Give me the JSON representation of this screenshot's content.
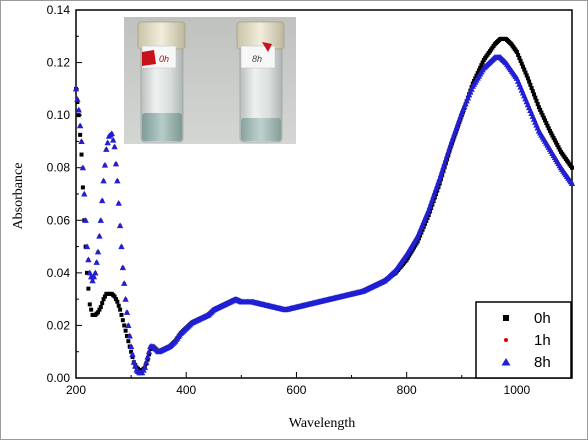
{
  "chart_data": {
    "type": "scatter",
    "title": "",
    "xlabel": "Wavelength",
    "ylabel": "Absorbance",
    "xlim": [
      200,
      1100
    ],
    "ylim": [
      0.0,
      0.14
    ],
    "x_ticks": [
      "200",
      "400",
      "600",
      "800",
      "1000"
    ],
    "y_ticks": [
      "0.00",
      "0.02",
      "0.04",
      "0.06",
      "0.08",
      "0.10",
      "0.12",
      "0.14"
    ],
    "grid": false,
    "legend_position": "bottom-right",
    "series": [
      {
        "name": "0h",
        "marker": "square",
        "color": "#000000",
        "x": [
          200,
          205,
          210,
          215,
          220,
          225,
          230,
          235,
          240,
          245,
          250,
          255,
          260,
          265,
          270,
          275,
          280,
          285,
          290,
          295,
          300,
          305,
          310,
          315,
          320,
          325,
          330,
          335,
          340,
          350,
          360,
          370,
          380,
          390,
          400,
          410,
          420,
          430,
          440,
          450,
          460,
          470,
          480,
          490,
          500,
          520,
          540,
          560,
          580,
          600,
          620,
          640,
          660,
          680,
          700,
          720,
          740,
          760,
          780,
          800,
          820,
          840,
          860,
          880,
          900,
          920,
          940,
          960,
          970,
          980,
          990,
          1000,
          1020,
          1040,
          1060,
          1080,
          1100
        ],
        "y": [
          0.11,
          0.1,
          0.085,
          0.06,
          0.04,
          0.028,
          0.024,
          0.024,
          0.025,
          0.027,
          0.03,
          0.032,
          0.032,
          0.032,
          0.031,
          0.029,
          0.026,
          0.022,
          0.018,
          0.014,
          0.01,
          0.006,
          0.004,
          0.003,
          0.003,
          0.004,
          0.007,
          0.011,
          0.012,
          0.01,
          0.011,
          0.012,
          0.014,
          0.017,
          0.019,
          0.021,
          0.022,
          0.023,
          0.024,
          0.026,
          0.027,
          0.028,
          0.029,
          0.03,
          0.029,
          0.029,
          0.028,
          0.027,
          0.026,
          0.027,
          0.028,
          0.029,
          0.03,
          0.031,
          0.032,
          0.033,
          0.035,
          0.037,
          0.04,
          0.045,
          0.052,
          0.062,
          0.074,
          0.088,
          0.1,
          0.112,
          0.121,
          0.127,
          0.129,
          0.129,
          0.127,
          0.124,
          0.114,
          0.103,
          0.094,
          0.086,
          0.08
        ]
      },
      {
        "name": "1h",
        "marker": "circle",
        "color": "#e00000",
        "x": [
          200,
          205,
          210,
          215,
          220,
          225,
          230,
          235,
          240,
          245,
          250,
          255,
          260,
          265,
          270,
          275,
          280,
          285,
          290,
          295,
          300,
          305,
          310,
          315,
          320,
          325,
          330,
          335,
          340,
          350,
          360,
          370,
          380,
          390,
          400,
          410,
          420,
          430,
          440,
          450,
          460,
          470,
          480,
          490,
          500,
          520,
          540,
          560,
          580,
          600,
          620,
          640,
          660,
          680,
          700,
          720,
          740,
          760,
          780,
          800,
          820,
          840,
          860,
          880,
          900,
          920,
          940,
          950,
          960,
          970,
          980,
          1000,
          1020,
          1040,
          1060,
          1080,
          1100
        ],
        "y": [
          0.11,
          0.102,
          0.09,
          0.07,
          0.05,
          0.04,
          0.037,
          0.04,
          0.048,
          0.06,
          0.075,
          0.087,
          0.092,
          0.093,
          0.088,
          0.075,
          0.058,
          0.042,
          0.03,
          0.02,
          0.012,
          0.006,
          0.003,
          0.002,
          0.002,
          0.004,
          0.008,
          0.012,
          0.012,
          0.01,
          0.011,
          0.012,
          0.014,
          0.017,
          0.019,
          0.021,
          0.022,
          0.023,
          0.024,
          0.026,
          0.027,
          0.028,
          0.029,
          0.03,
          0.029,
          0.029,
          0.028,
          0.027,
          0.026,
          0.027,
          0.028,
          0.029,
          0.03,
          0.031,
          0.032,
          0.033,
          0.035,
          0.037,
          0.041,
          0.047,
          0.054,
          0.064,
          0.076,
          0.089,
          0.101,
          0.111,
          0.118,
          0.12,
          0.122,
          0.122,
          0.12,
          0.114,
          0.104,
          0.094,
          0.087,
          0.08,
          0.074
        ]
      },
      {
        "name": "8h",
        "marker": "triangle",
        "color": "#1f1fd6",
        "x": [
          200,
          205,
          210,
          215,
          220,
          225,
          230,
          235,
          240,
          245,
          250,
          255,
          260,
          265,
          270,
          275,
          280,
          285,
          290,
          295,
          300,
          305,
          310,
          315,
          320,
          325,
          330,
          335,
          340,
          350,
          360,
          370,
          380,
          390,
          400,
          410,
          420,
          430,
          440,
          450,
          460,
          470,
          480,
          490,
          500,
          520,
          540,
          560,
          580,
          600,
          620,
          640,
          660,
          680,
          700,
          720,
          740,
          760,
          780,
          800,
          820,
          840,
          860,
          880,
          900,
          920,
          940,
          950,
          960,
          970,
          980,
          1000,
          1020,
          1040,
          1060,
          1080,
          1100
        ],
        "y": [
          0.11,
          0.102,
          0.09,
          0.07,
          0.05,
          0.04,
          0.037,
          0.04,
          0.048,
          0.06,
          0.075,
          0.087,
          0.092,
          0.093,
          0.088,
          0.075,
          0.058,
          0.042,
          0.03,
          0.02,
          0.012,
          0.006,
          0.003,
          0.002,
          0.002,
          0.004,
          0.008,
          0.012,
          0.012,
          0.01,
          0.011,
          0.012,
          0.014,
          0.017,
          0.019,
          0.021,
          0.022,
          0.023,
          0.024,
          0.026,
          0.027,
          0.028,
          0.029,
          0.03,
          0.029,
          0.029,
          0.028,
          0.027,
          0.026,
          0.027,
          0.028,
          0.029,
          0.03,
          0.031,
          0.032,
          0.033,
          0.035,
          0.037,
          0.041,
          0.047,
          0.054,
          0.064,
          0.076,
          0.089,
          0.101,
          0.111,
          0.118,
          0.12,
          0.122,
          0.122,
          0.12,
          0.114,
          0.104,
          0.094,
          0.087,
          0.08,
          0.074
        ]
      }
    ],
    "inset_photo": {
      "vial_labels": [
        "0h",
        "8h"
      ]
    }
  }
}
